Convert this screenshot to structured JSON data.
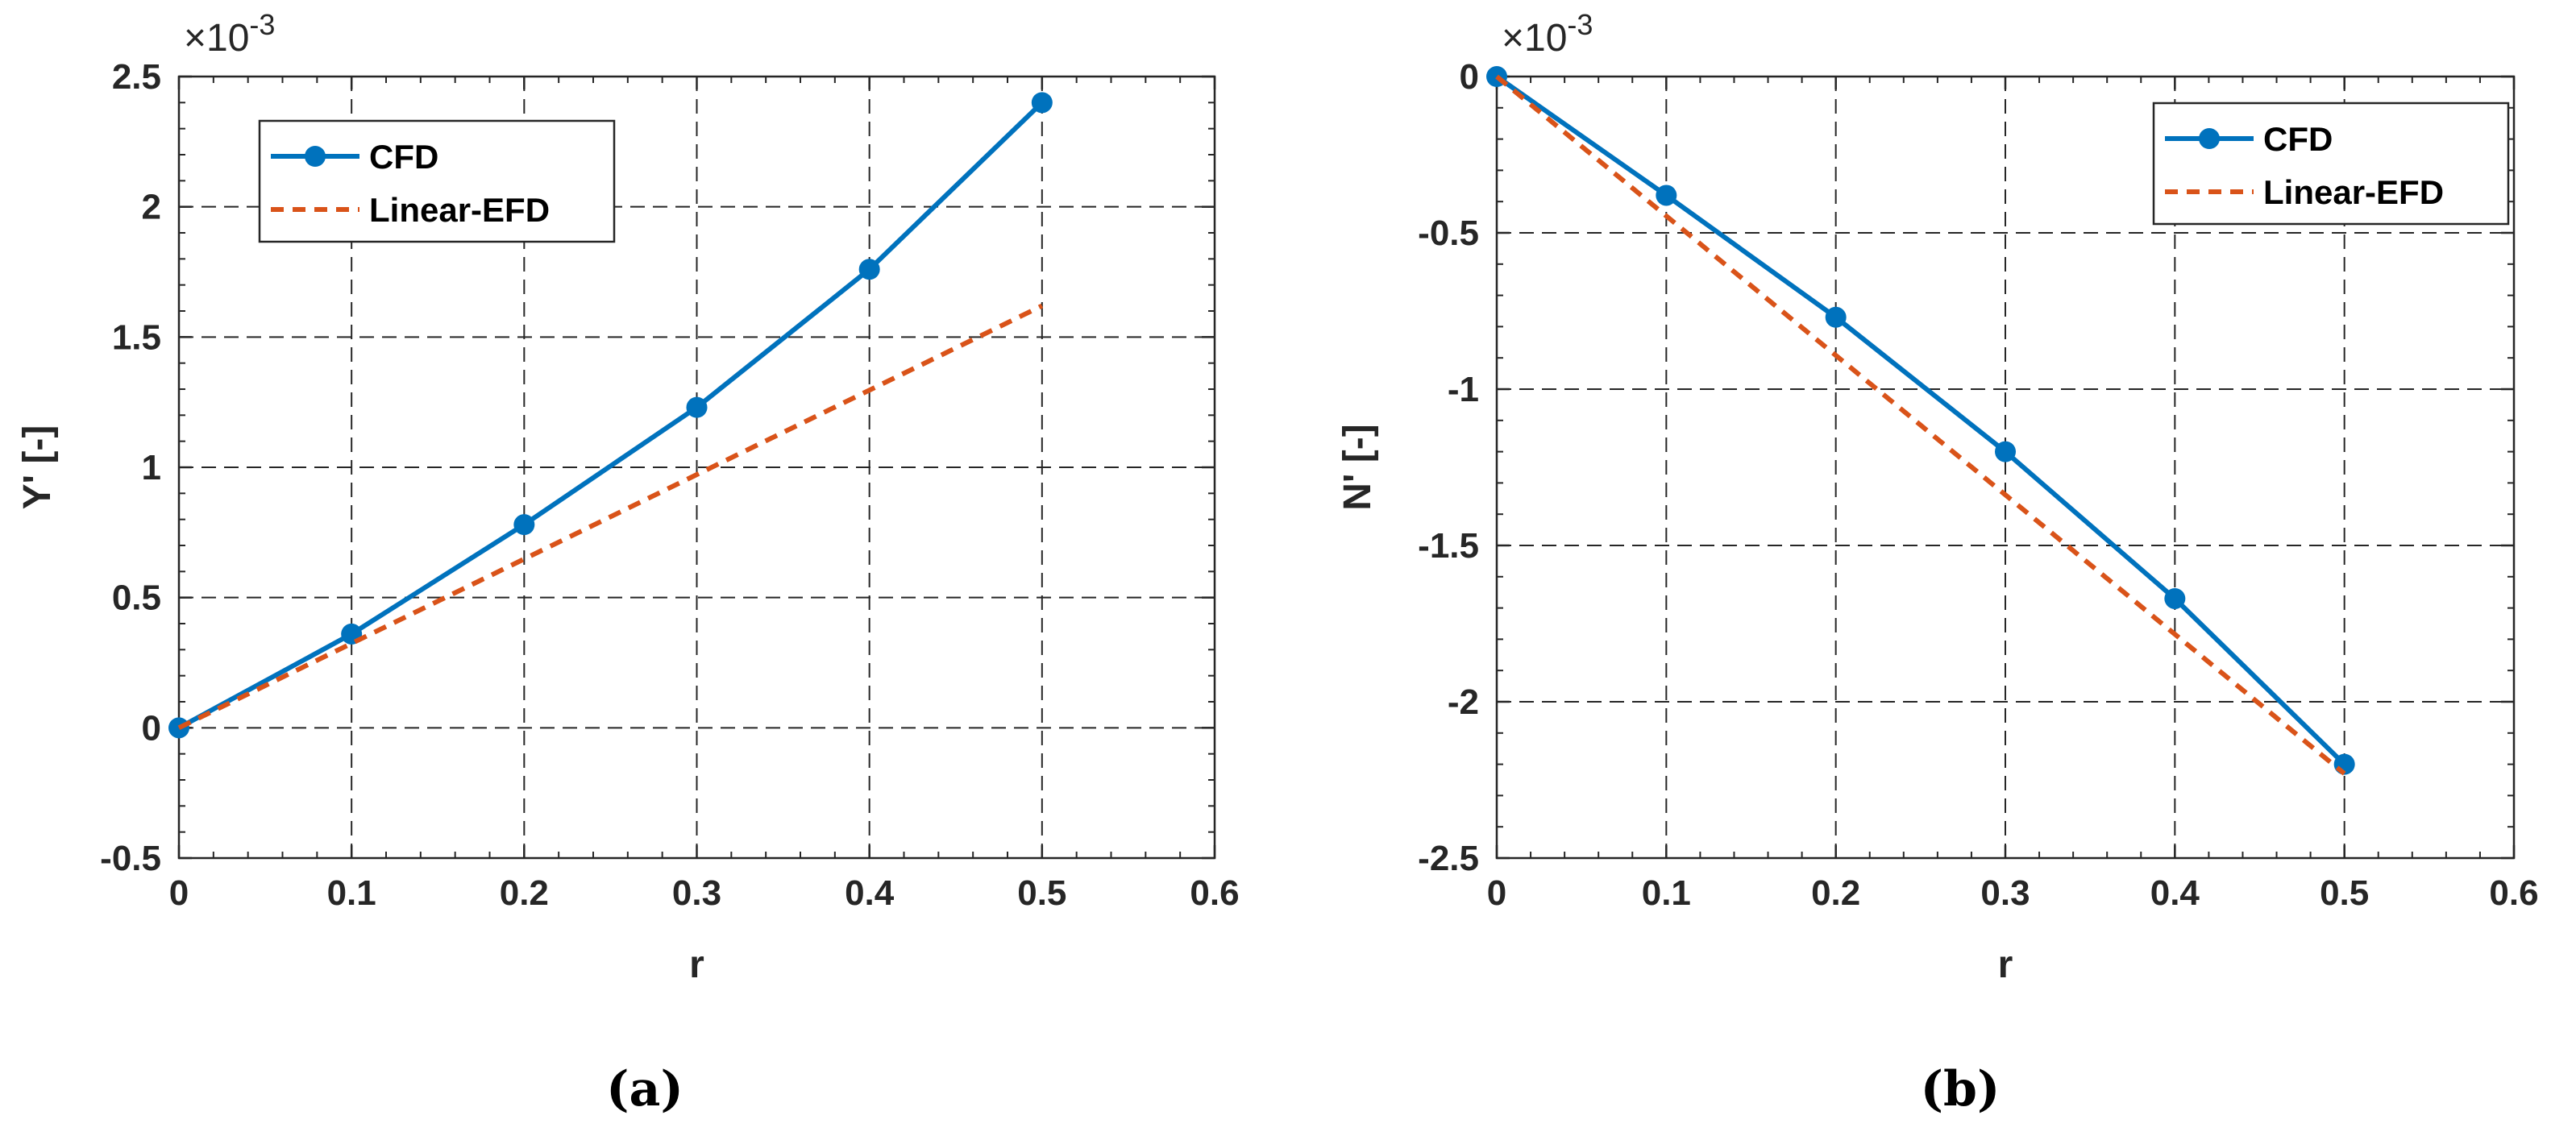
{
  "colors": {
    "cfd": "#0072BD",
    "efd": "#D95319",
    "axis": "#262626"
  },
  "chart_data": [
    {
      "type": "line",
      "caption": "(a)",
      "exponent": "×10-3",
      "xlabel": "r",
      "ylabel": "Y' [-]",
      "xlim": [
        0,
        0.6
      ],
      "ylim": [
        -0.5,
        2.5
      ],
      "x_ticks": [
        0,
        0.1,
        0.2,
        0.3,
        0.4,
        0.5,
        0.6
      ],
      "x_tick_labels": [
        "0",
        "0.1",
        "0.2",
        "0.3",
        "0.4",
        "0.5",
        "0.6"
      ],
      "y_ticks": [
        -0.5,
        0,
        0.5,
        1,
        1.5,
        2,
        2.5
      ],
      "y_tick_labels": [
        "-0.5",
        "0",
        "0.5",
        "1",
        "1.5",
        "2",
        "2.5"
      ],
      "grid": true,
      "legend_position": "top-left",
      "series": [
        {
          "name": "CFD",
          "style": "solid-markers",
          "x": [
            0,
            0.1,
            0.2,
            0.3,
            0.4,
            0.5
          ],
          "y": [
            0,
            0.36,
            0.78,
            1.23,
            1.76,
            2.4
          ]
        },
        {
          "name": "Linear-EFD",
          "style": "dashed",
          "x": [
            0,
            0.5
          ],
          "y": [
            0,
            1.62
          ]
        }
      ]
    },
    {
      "type": "line",
      "caption": "(b)",
      "exponent": "×10-3",
      "xlabel": "r",
      "ylabel": "N' [-]",
      "xlim": [
        0,
        0.6
      ],
      "ylim": [
        -2.5,
        0
      ],
      "x_ticks": [
        0,
        0.1,
        0.2,
        0.3,
        0.4,
        0.5,
        0.6
      ],
      "x_tick_labels": [
        "0",
        "0.1",
        "0.2",
        "0.3",
        "0.4",
        "0.5",
        "0.6"
      ],
      "y_ticks": [
        -2.5,
        -2,
        -1.5,
        -1,
        -0.5,
        0
      ],
      "y_tick_labels": [
        "-2.5",
        "-2",
        "-1.5",
        "-1",
        "-0.5",
        "0"
      ],
      "grid": true,
      "legend_position": "top-right",
      "series": [
        {
          "name": "CFD",
          "style": "solid-markers",
          "x": [
            0,
            0.1,
            0.2,
            0.3,
            0.4,
            0.5
          ],
          "y": [
            0,
            -0.38,
            -0.77,
            -1.2,
            -1.67,
            -2.2
          ]
        },
        {
          "name": "Linear-EFD",
          "style": "dashed",
          "x": [
            0,
            0.5
          ],
          "y": [
            0,
            -2.23
          ]
        }
      ]
    }
  ]
}
